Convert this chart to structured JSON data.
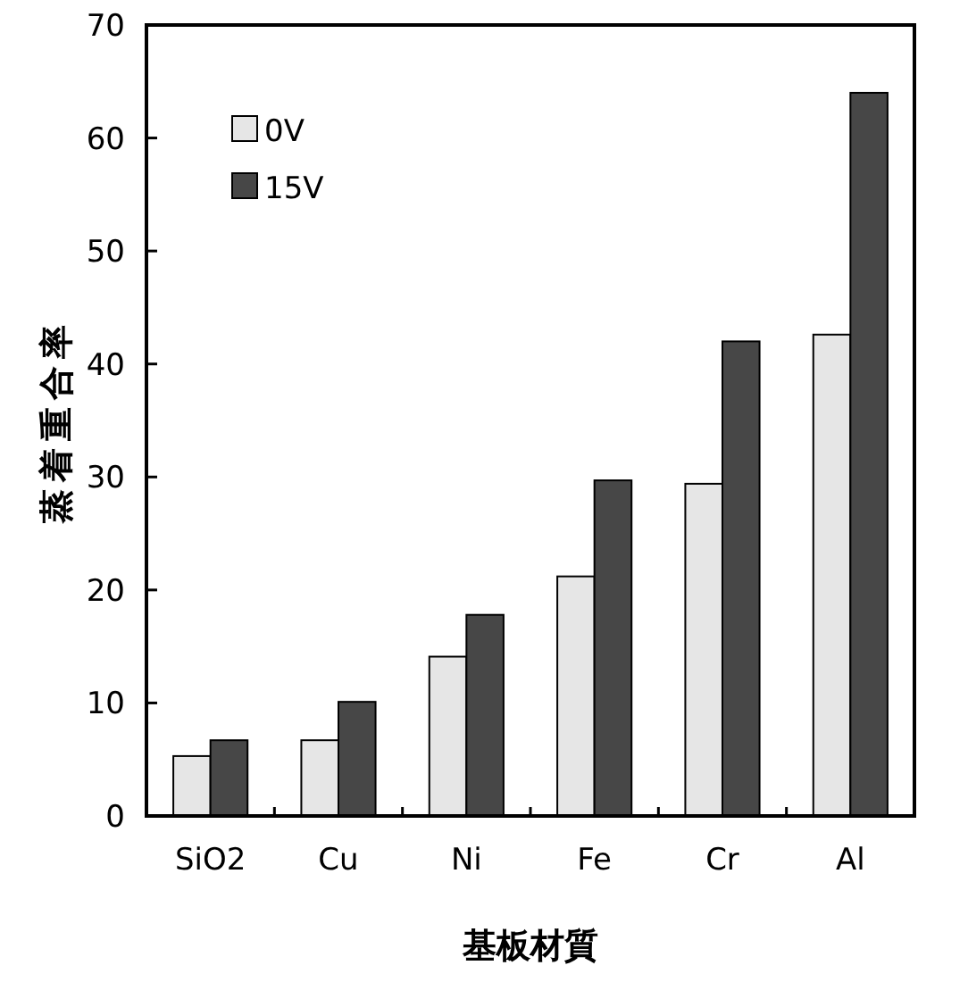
{
  "chart_data": {
    "type": "bar",
    "xlabel": "基板材質",
    "ylabel": "蒸着重合率",
    "categories": [
      "SiO2",
      "Cu",
      "Ni",
      "Fe",
      "Cr",
      "Al"
    ],
    "series": [
      {
        "name": "0V",
        "color": "#e6e6e6",
        "values": [
          5.3,
          6.7,
          14.1,
          21.2,
          29.4,
          42.6
        ]
      },
      {
        "name": "15V",
        "color": "#474747",
        "values": [
          6.7,
          10.1,
          17.8,
          29.7,
          42.0,
          64.0
        ]
      }
    ],
    "ylim": [
      0,
      70
    ],
    "yticks": [
      0,
      10,
      20,
      30,
      40,
      50,
      60,
      70
    ],
    "legend": "top left"
  }
}
